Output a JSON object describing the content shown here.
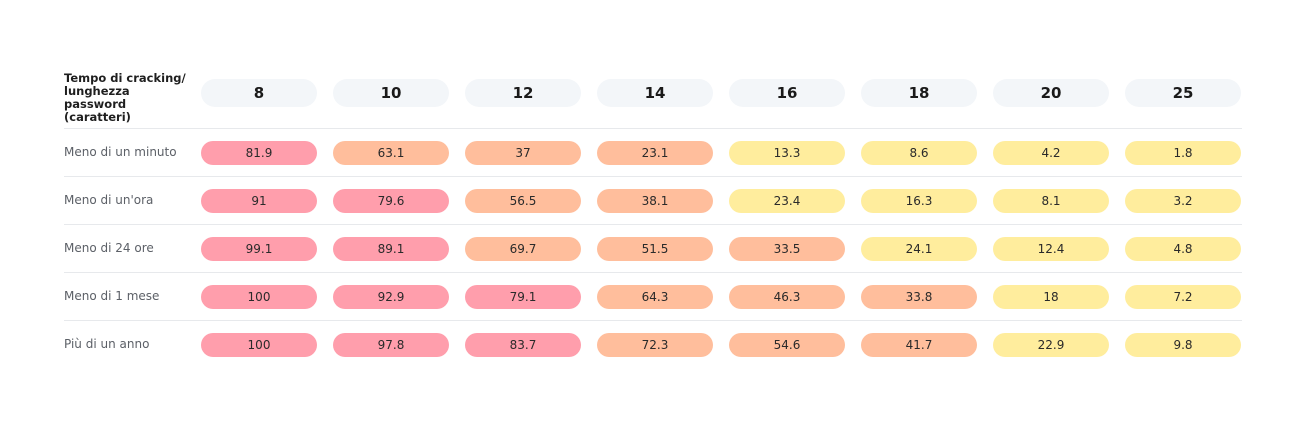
{
  "chart_data": {
    "type": "table",
    "corner_label": "Tempo di cracking/ lunghezza password (caratteri)",
    "columns": [
      "8",
      "10",
      "12",
      "14",
      "16",
      "18",
      "20",
      "25"
    ],
    "rows": [
      {
        "label": "Meno di un minuto",
        "values": [
          81.9,
          63.1,
          37,
          23.1,
          13.3,
          8.6,
          4.2,
          1.8
        ],
        "display": [
          "81.9",
          "63.1",
          "37",
          "23.1",
          "13.3",
          "8.6",
          "4.2",
          "1.8"
        ],
        "levels": [
          "high",
          "mid",
          "mid",
          "mid",
          "low",
          "low",
          "low",
          "low"
        ]
      },
      {
        "label": "Meno di un'ora",
        "values": [
          91,
          79.6,
          56.5,
          38.1,
          23.4,
          16.3,
          8.1,
          3.2
        ],
        "display": [
          "91",
          "79.6",
          "56.5",
          "38.1",
          "23.4",
          "16.3",
          "8.1",
          "3.2"
        ],
        "levels": [
          "high",
          "high",
          "mid",
          "mid",
          "low",
          "low",
          "low",
          "low"
        ]
      },
      {
        "label": "Meno di 24 ore",
        "values": [
          99.1,
          89.1,
          69.7,
          51.5,
          33.5,
          24.1,
          12.4,
          4.8
        ],
        "display": [
          "99.1",
          "89.1",
          "69.7",
          "51.5",
          "33.5",
          "24.1",
          "12.4",
          "4.8"
        ],
        "levels": [
          "high",
          "high",
          "mid",
          "mid",
          "mid",
          "low",
          "low",
          "low"
        ]
      },
      {
        "label": "Meno di 1 mese",
        "values": [
          100,
          92.9,
          79.1,
          64.3,
          46.3,
          33.8,
          18,
          7.2
        ],
        "display": [
          "100",
          "92.9",
          "79.1",
          "64.3",
          "46.3",
          "33.8",
          "18",
          "7.2"
        ],
        "levels": [
          "high",
          "high",
          "high",
          "mid",
          "mid",
          "mid",
          "low",
          "low"
        ]
      },
      {
        "label": "Più di un anno",
        "values": [
          100,
          97.8,
          83.7,
          72.3,
          54.6,
          41.7,
          22.9,
          9.8
        ],
        "display": [
          "100",
          "97.8",
          "83.7",
          "72.3",
          "54.6",
          "41.7",
          "22.9",
          "9.8"
        ],
        "levels": [
          "high",
          "high",
          "high",
          "mid",
          "mid",
          "mid",
          "low",
          "low"
        ]
      }
    ],
    "colors": {
      "high": "#ff9eac",
      "mid": "#ffbe9c",
      "low": "#ffed9d",
      "header": "#f3f6f9"
    }
  }
}
